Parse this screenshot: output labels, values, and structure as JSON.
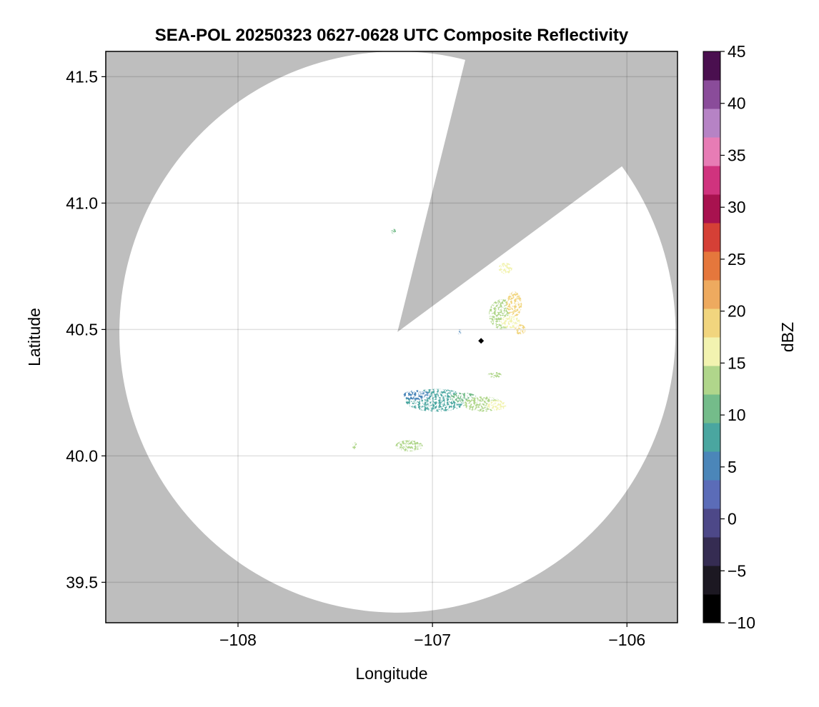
{
  "chart_data": {
    "type": "heatmap",
    "title": "SEA-POL 20250323 0627-0628 UTC Composite Reflectivity",
    "xlabel": "Longitude",
    "ylabel": "Latitude",
    "xlim": [
      -108.68,
      -105.74
    ],
    "ylim": [
      39.34,
      41.6
    ],
    "x_ticks": [
      -108,
      -107,
      -106
    ],
    "x_tick_labels": [
      "−108",
      "−107",
      "−106"
    ],
    "y_ticks": [
      39.5,
      40.0,
      40.5,
      41.0,
      41.5
    ],
    "y_tick_labels": [
      "39.5",
      "40.0",
      "40.5",
      "41.0",
      "41.5"
    ],
    "grid": true,
    "background_color": "#bebebe",
    "radar": {
      "center_lon": -107.18,
      "center_lat": 40.49,
      "range_lon_deg": 1.43,
      "range_lat_deg": 1.11,
      "blocked_sector": {
        "corner1_lon": -106.84,
        "corner1_lat": 41.53,
        "corner2_lon": -106.06,
        "corner2_lat": 41.12
      }
    },
    "site_marker": {
      "lon": -106.75,
      "lat": 40.455
    },
    "echoes": [
      {
        "lon": -106.98,
        "lat": 40.22,
        "rlon": 0.16,
        "rlat": 0.045,
        "dbz": 8
      },
      {
        "lon": -107.08,
        "lat": 40.24,
        "rlon": 0.07,
        "rlat": 0.02,
        "dbz": 6
      },
      {
        "lon": -106.84,
        "lat": 40.23,
        "rlon": 0.07,
        "rlat": 0.02,
        "dbz": 10
      },
      {
        "lon": -106.74,
        "lat": 40.205,
        "rlon": 0.1,
        "rlat": 0.03,
        "dbz": 12
      },
      {
        "lon": -106.67,
        "lat": 40.2,
        "rlon": 0.05,
        "rlat": 0.02,
        "dbz": 15
      },
      {
        "lon": -106.64,
        "lat": 40.56,
        "rlon": 0.07,
        "rlat": 0.06,
        "dbz": 14
      },
      {
        "lon": -106.58,
        "lat": 40.6,
        "rlon": 0.04,
        "rlat": 0.05,
        "dbz": 18
      },
      {
        "lon": -106.6,
        "lat": 40.53,
        "rlon": 0.05,
        "rlat": 0.025,
        "dbz": 16
      },
      {
        "lon": -106.55,
        "lat": 40.5,
        "rlon": 0.03,
        "rlat": 0.02,
        "dbz": 19
      },
      {
        "lon": -106.625,
        "lat": 40.742,
        "rlon": 0.035,
        "rlat": 0.022,
        "dbz": 15
      },
      {
        "lon": -107.12,
        "lat": 40.04,
        "rlon": 0.07,
        "rlat": 0.022,
        "dbz": 14
      },
      {
        "lon": -107.4,
        "lat": 40.04,
        "rlon": 0.012,
        "rlat": 0.015,
        "dbz": 12
      },
      {
        "lon": -107.2,
        "lat": 40.89,
        "rlon": 0.012,
        "rlat": 0.012,
        "dbz": 10
      },
      {
        "lon": -106.68,
        "lat": 40.32,
        "rlon": 0.035,
        "rlat": 0.012,
        "dbz": 12
      },
      {
        "lon": -106.86,
        "lat": 40.49,
        "rlon": 0.012,
        "rlat": 0.01,
        "dbz": 6
      }
    ],
    "colorbar": {
      "label": "dBZ",
      "range": [
        -10,
        45
      ],
      "ticks": [
        -10,
        -5,
        0,
        5,
        10,
        15,
        20,
        25,
        30,
        35,
        40,
        45
      ],
      "tick_labels": [
        "−10",
        "−5",
        "0",
        "5",
        "10",
        "15",
        "20",
        "25",
        "30",
        "35",
        "40",
        "45"
      ],
      "colors": [
        "#000000",
        "#1c1822",
        "#352c52",
        "#4d4888",
        "#5b6cb8",
        "#4b86b9",
        "#4aa6a0",
        "#74bc8a",
        "#b0d68b",
        "#f2f3b0",
        "#f1d57e",
        "#eeaa5f",
        "#e5773c",
        "#d54036",
        "#a8124f",
        "#d0337e",
        "#e77cb5",
        "#b683c5",
        "#8a4c9a",
        "#4a0f4f"
      ]
    }
  }
}
